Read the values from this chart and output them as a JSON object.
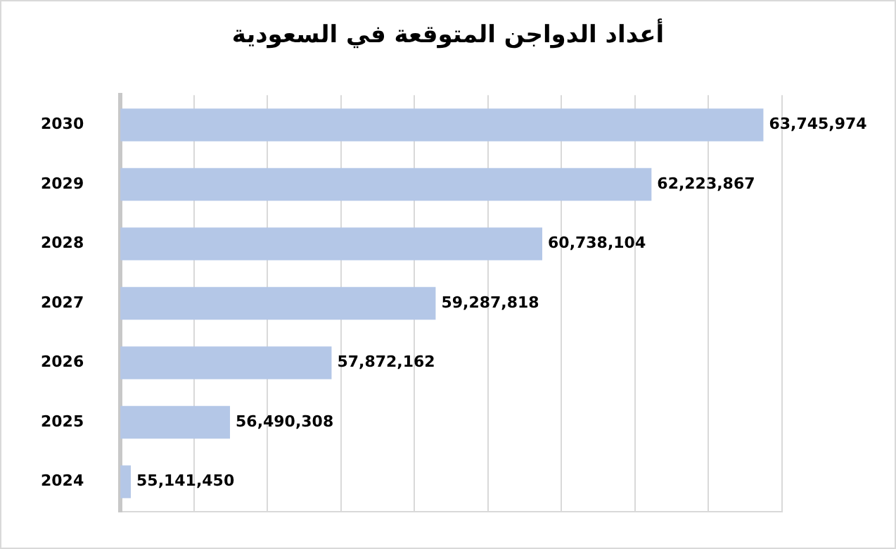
{
  "chart_data": {
    "type": "bar",
    "orientation": "horizontal",
    "title": "أعداد الدواجن المتوقعة في السعودية",
    "categories": [
      "2030",
      "2029",
      "2028",
      "2027",
      "2026",
      "2025",
      "2024"
    ],
    "values": [
      63745974,
      62223867,
      60738104,
      59287818,
      57872162,
      56490308,
      55141450
    ],
    "value_labels": [
      "63,745,974",
      "62,223,867",
      "60,738,104",
      "59,287,818",
      "57,872,162",
      "56,490,308",
      "55,141,450"
    ],
    "color": "#b4c7e7",
    "grid": "x",
    "legend": false,
    "tick_labels": "y"
  }
}
